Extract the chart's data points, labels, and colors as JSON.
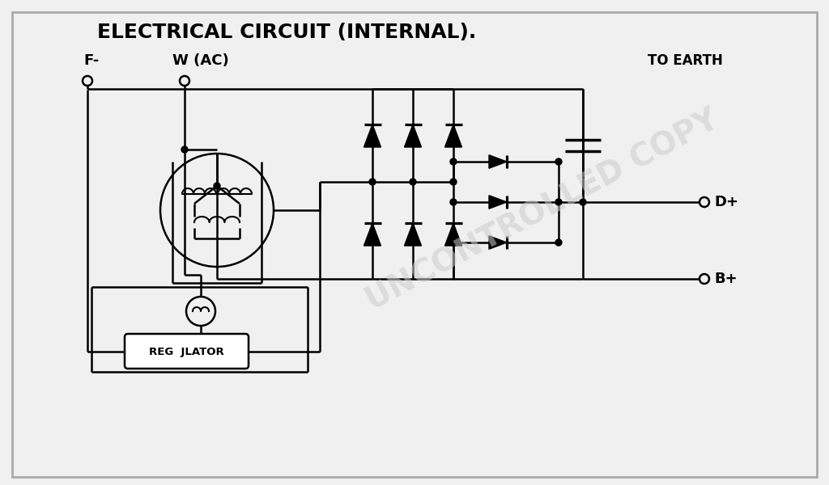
{
  "title": "ELECTRICAL CIRCUIT (INTERNAL).",
  "watermark": "UNCONTROLLED COPY",
  "bg_color": "#f0f0f0",
  "line_color": "#000000",
  "label_F": "F-",
  "label_W": "W (AC)",
  "label_Bplus": "B+",
  "label_Dplus": "D+",
  "label_earth": "TO EARTH",
  "label_regulator": "REG  JLATOR",
  "title_fontsize": 18,
  "lw": 1.8
}
